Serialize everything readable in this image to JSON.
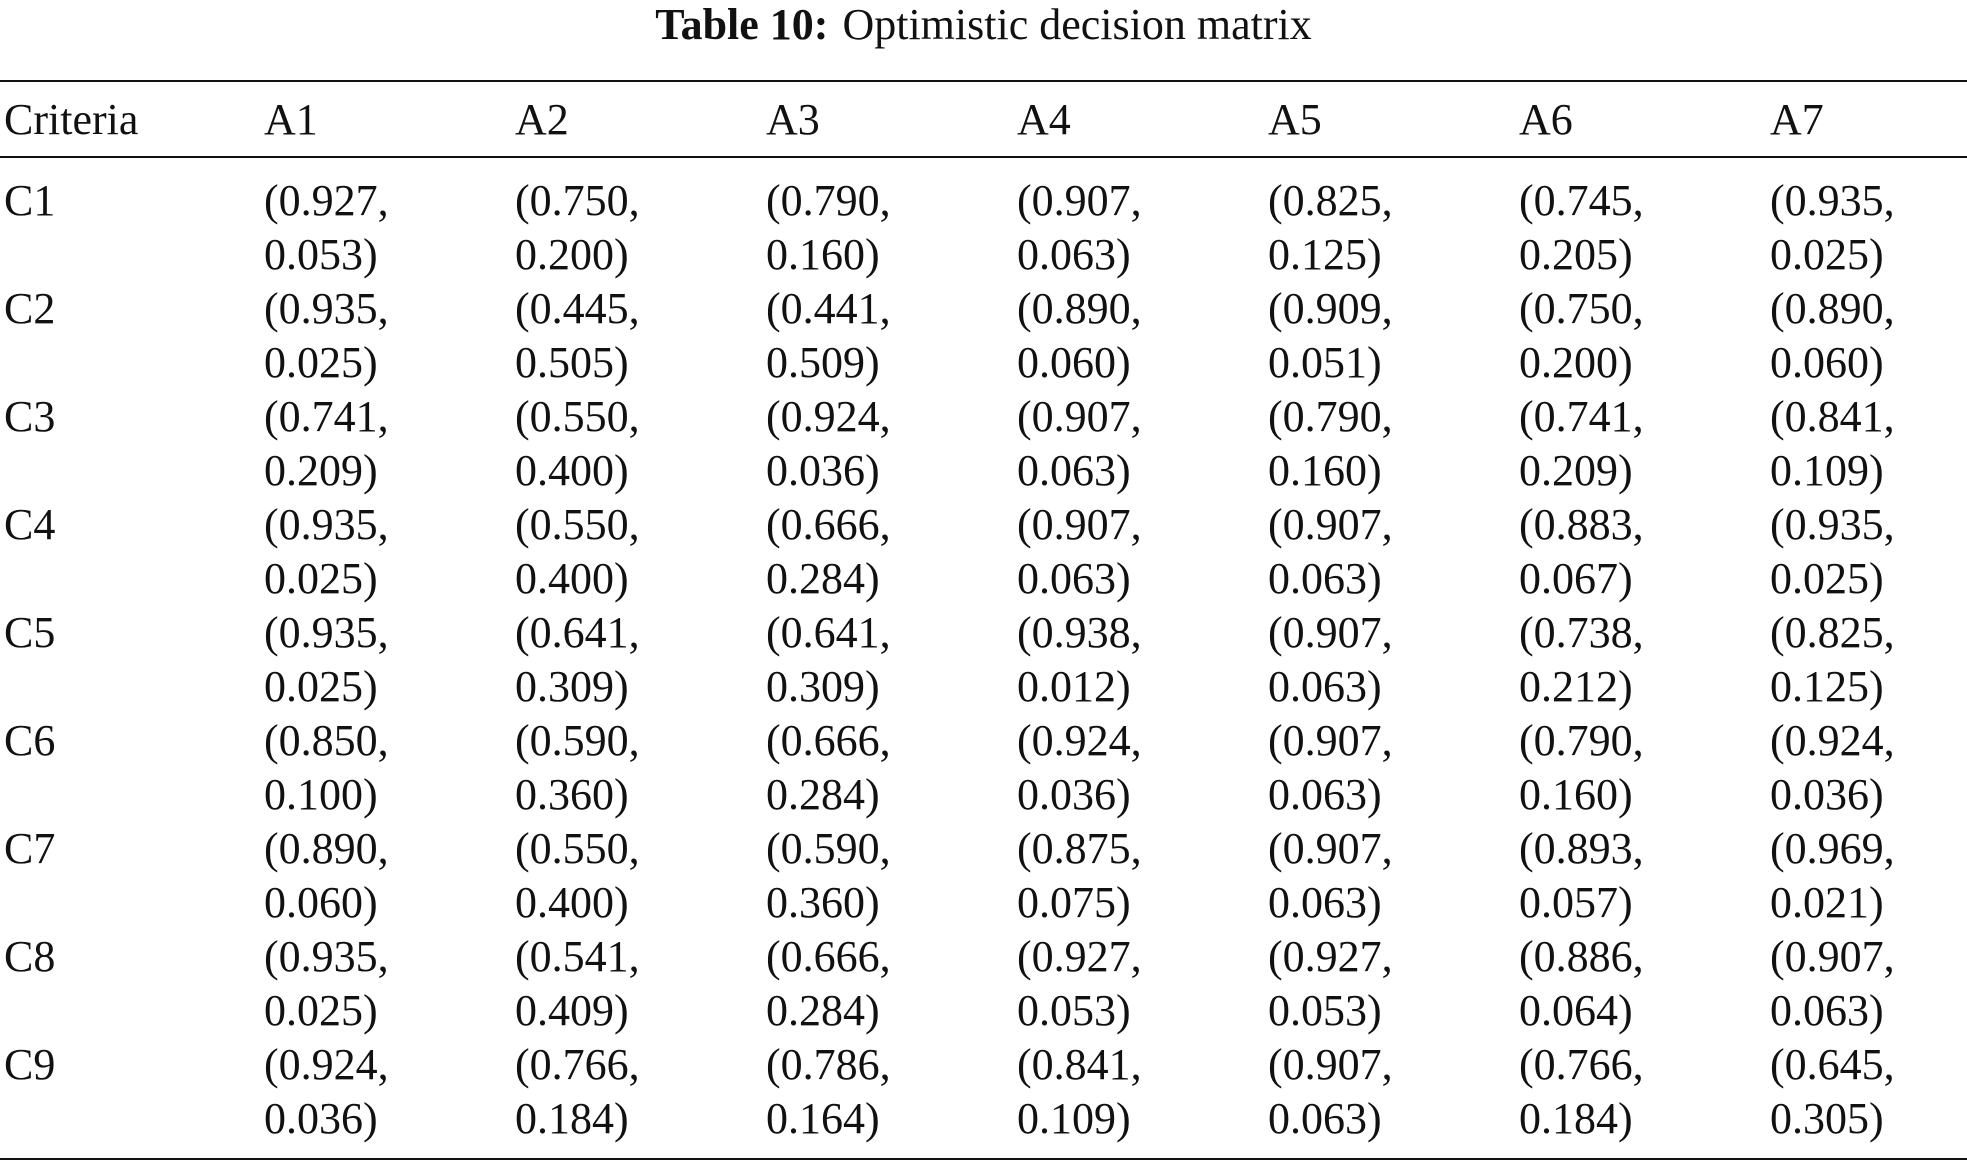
{
  "title": {
    "label": "Table 10:",
    "text": "Optimistic decision matrix"
  },
  "table": {
    "header": [
      "Criteria",
      "A1",
      "A2",
      "A3",
      "A4",
      "A5",
      "A6",
      "A7"
    ],
    "rows": [
      [
        "C1",
        "(0.927, 0.053)",
        "(0.750, 0.200)",
        "(0.790, 0.160)",
        "(0.907, 0.063)",
        "(0.825, 0.125)",
        "(0.745, 0.205)",
        "(0.935, 0.025)"
      ],
      [
        "C2",
        "(0.935, 0.025)",
        "(0.445, 0.505)",
        "(0.441, 0.509)",
        "(0.890, 0.060)",
        "(0.909, 0.051)",
        "(0.750, 0.200)",
        "(0.890, 0.060)"
      ],
      [
        "C3",
        "(0.741, 0.209)",
        "(0.550, 0.400)",
        "(0.924, 0.036)",
        "(0.907, 0.063)",
        "(0.790, 0.160)",
        "(0.741, 0.209)",
        "(0.841, 0.109)"
      ],
      [
        "C4",
        "(0.935, 0.025)",
        "(0.550, 0.400)",
        "(0.666, 0.284)",
        "(0.907, 0.063)",
        "(0.907, 0.063)",
        "(0.883, 0.067)",
        "(0.935, 0.025)"
      ],
      [
        "C5",
        "(0.935, 0.025)",
        "(0.641, 0.309)",
        "(0.641, 0.309)",
        "(0.938, 0.012)",
        "(0.907, 0.063)",
        "(0.738, 0.212)",
        "(0.825, 0.125)"
      ],
      [
        "C6",
        "(0.850, 0.100)",
        "(0.590, 0.360)",
        "(0.666, 0.284)",
        "(0.924, 0.036)",
        "(0.907, 0.063)",
        "(0.790, 0.160)",
        "(0.924, 0.036)"
      ],
      [
        "C7",
        "(0.890, 0.060)",
        "(0.550, 0.400)",
        "(0.590, 0.360)",
        "(0.875, 0.075)",
        "(0.907, 0.063)",
        "(0.893, 0.057)",
        "(0.969, 0.021)"
      ],
      [
        "C8",
        "(0.935, 0.025)",
        "(0.541, 0.409)",
        "(0.666, 0.284)",
        "(0.927, 0.053)",
        "(0.927, 0.053)",
        "(0.886, 0.064)",
        "(0.907, 0.063)"
      ],
      [
        "C9",
        "(0.924, 0.036)",
        "(0.766, 0.184)",
        "(0.786, 0.164)",
        "(0.841, 0.109)",
        "(0.907, 0.063)",
        "(0.766, 0.184)",
        "(0.645, 0.305)"
      ]
    ]
  }
}
